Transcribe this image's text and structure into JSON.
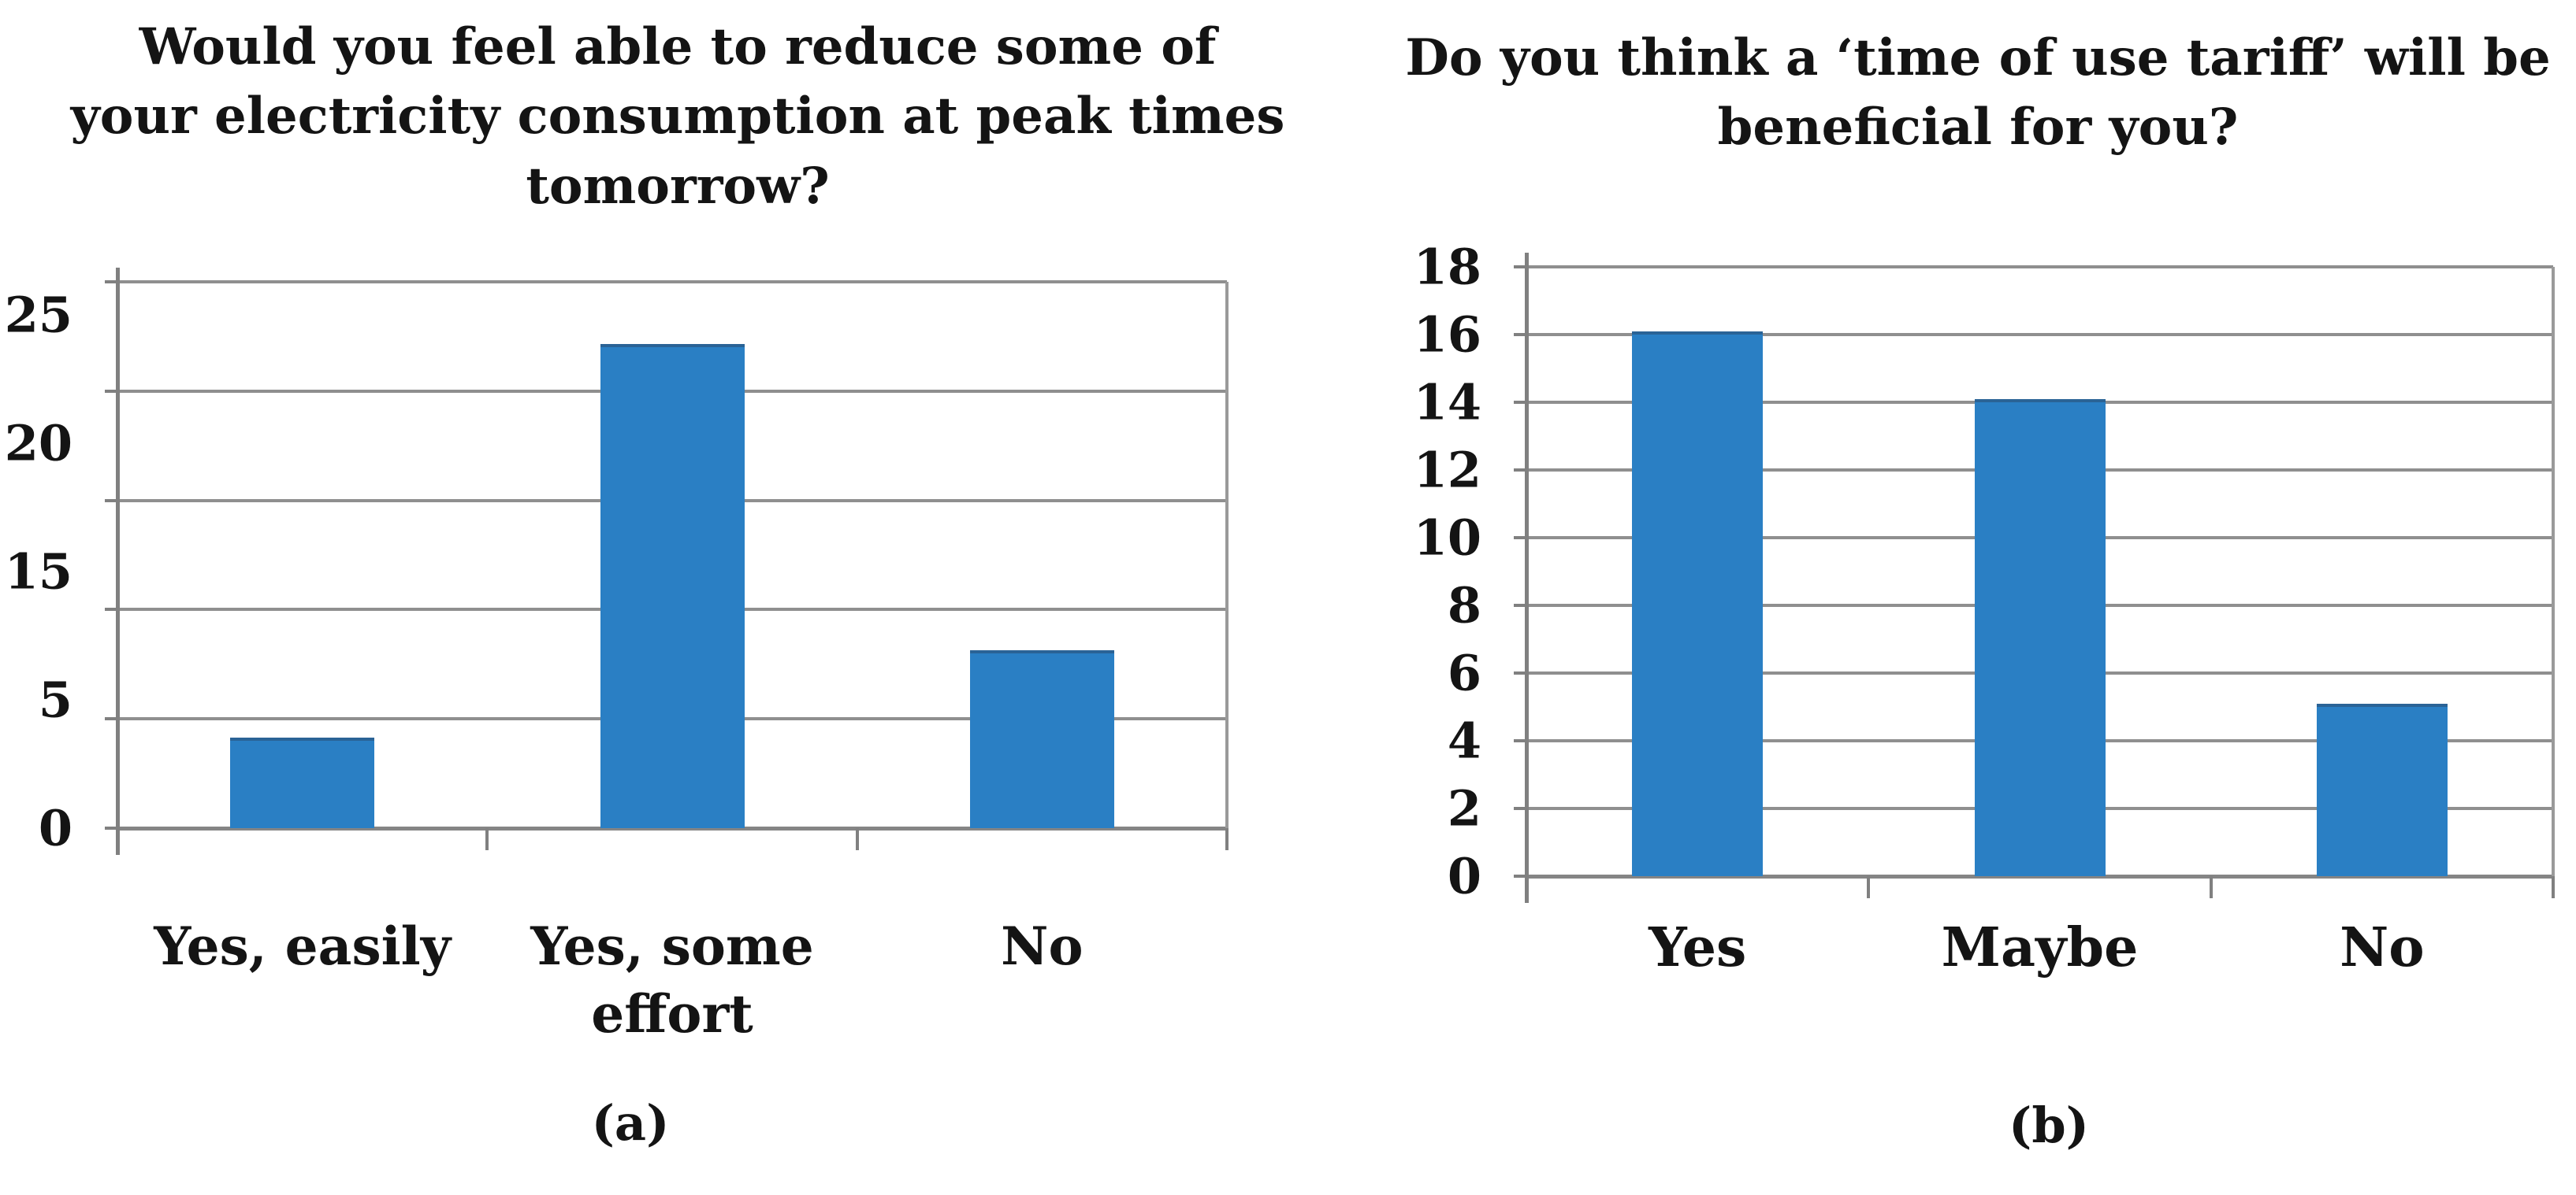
{
  "figure": {
    "panels": [
      {
        "id": "a",
        "caption_label": "(a)"
      },
      {
        "id": "b",
        "caption_label": "(b)"
      }
    ]
  },
  "chart_data": [
    {
      "type": "bar",
      "panel": "a",
      "title": "Would you feel able to reduce some of your electricity consumption at peak times tomorrow?",
      "title_lines": [
        "Would you feel able to reduce some of",
        "your electricity consumption at peak times",
        "tomorrow?"
      ],
      "categories": [
        "Yes, easily",
        "Yes, some effort",
        "No"
      ],
      "category_label_lines": [
        [
          "Yes, easily"
        ],
        [
          "Yes, some",
          "effort"
        ],
        [
          "No"
        ]
      ],
      "values": [
        4,
        22,
        8
      ],
      "xlabel": "",
      "ylabel": "",
      "ylim": [
        0,
        25
      ],
      "ytick_step": 5,
      "ytick_labels": [
        "25",
        "20",
        "15",
        "5",
        "0"
      ],
      "grid": true,
      "legend": false,
      "bar_color": "#2a7fc4",
      "caption": "(a)"
    },
    {
      "type": "bar",
      "panel": "b",
      "title": "Do you think a ‘time of use tariff’ will be beneficial for you?",
      "title_lines": [
        "Do you think a ‘time of use tariff’ will be",
        "beneficial for you?"
      ],
      "categories": [
        "Yes",
        "Maybe",
        "No"
      ],
      "category_label_lines": [
        [
          "Yes"
        ],
        [
          "Maybe"
        ],
        [
          "No"
        ]
      ],
      "values": [
        16,
        14,
        5
      ],
      "xlabel": "",
      "ylabel": "",
      "ylim": [
        0,
        18
      ],
      "ytick_step": 2,
      "ytick_labels": [
        "18",
        "16",
        "14",
        "12",
        "10",
        "8",
        "6",
        "4",
        "2",
        "0"
      ],
      "grid": true,
      "legend": false,
      "bar_color": "#2a7fc4",
      "caption": "(b)"
    }
  ],
  "colors": {
    "bar_fill": "#2a7fc4",
    "bar_top_edge": "#2a6396",
    "gridline": "#8f8f8f",
    "baseline": "#858585",
    "axis_line": "#808080",
    "plot_right_border": "#9a9a9a",
    "text": "#141414",
    "background": "#ffffff"
  }
}
